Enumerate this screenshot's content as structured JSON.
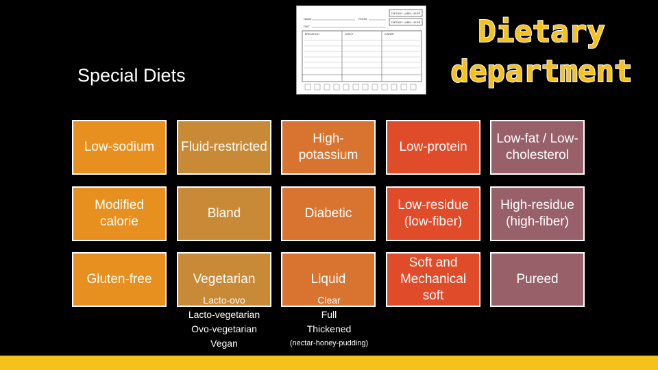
{
  "slide": {
    "subtitle": "Special Diets",
    "title_line1": "Dietary",
    "title_line2": "department",
    "accent_color": "#f5c21b"
  },
  "tiles": {
    "low_sodium": {
      "label": "Low-sodium",
      "color": "#e8901f"
    },
    "fluid_restricted": {
      "label": "Fluid-restricted",
      "color": "#c98a38"
    },
    "high_potassium": {
      "label": "High-potassium",
      "color": "#d97330"
    },
    "low_protein": {
      "label": "Low-protein",
      "color": "#e04b2a"
    },
    "low_fat": {
      "label": "Low-fat / Low-cholesterol",
      "color": "#98616a"
    },
    "modified_calorie": {
      "label": "Modified calorie",
      "color": "#e8901f"
    },
    "bland": {
      "label": "Bland",
      "color": "#c98a38"
    },
    "diabetic": {
      "label": "Diabetic",
      "color": "#d97330"
    },
    "low_residue": {
      "label": "Low-residue (low-fiber)",
      "color": "#e04b2a"
    },
    "high_residue": {
      "label": "High-residue (high-fiber)",
      "color": "#98616a"
    },
    "gluten_free": {
      "label": "Gluten-free",
      "color": "#e8901f"
    },
    "vegetarian": {
      "label": "Vegetarian",
      "color": "#c98a38"
    },
    "liquid": {
      "label": "Liquid",
      "color": "#d97330"
    },
    "soft_mechanical": {
      "label": "Soft and Mechanical soft",
      "color": "#e04b2a"
    },
    "pureed": {
      "label": "Pureed",
      "color": "#98616a"
    }
  },
  "vegetarian_types": [
    "Lacto-ovo",
    "Lacto-vegetarian",
    "Ovo-vegetarian",
    "Vegan"
  ],
  "liquid_types": [
    "Clear",
    "Full",
    "Thickened"
  ],
  "liquid_note": "(nectar-honey-pudding)",
  "card": {
    "name_label": "NAME",
    "room_label": "ROOM",
    "diet_label": "DIET",
    "label_here_1": "DIETARY LABEL HERE",
    "label_here_2": "DIETARY LABEL HERE",
    "breakfast": "BREAKFAST",
    "lunch": "LUNCH",
    "dinner": "DINNER"
  }
}
